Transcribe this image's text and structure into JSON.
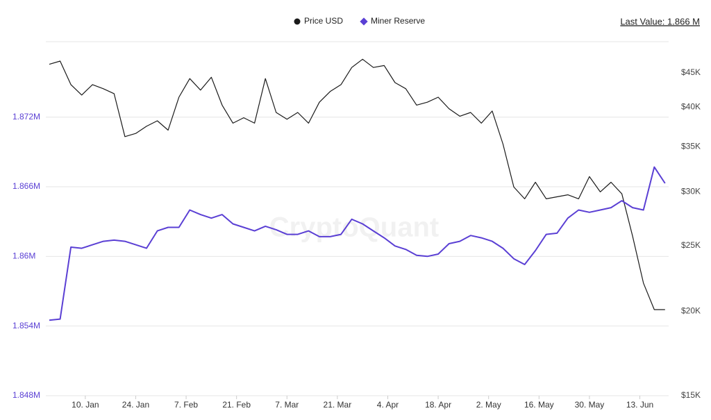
{
  "chart_data": {
    "type": "line",
    "last_value": "Last Value: 1.866 M",
    "watermark": "CryptoQuant",
    "x": [
      0,
      3,
      6,
      9,
      12,
      15,
      18,
      21,
      24,
      27,
      30,
      33,
      36,
      39,
      42,
      45,
      48,
      51,
      54,
      57,
      60,
      63,
      66,
      69,
      72,
      75,
      78,
      81,
      84,
      87,
      90,
      93,
      96,
      99,
      102,
      105,
      108,
      111,
      114,
      117,
      120,
      123,
      126,
      129,
      132,
      135,
      138,
      141,
      144,
      147,
      150,
      153,
      156,
      159,
      162,
      165,
      168,
      171
    ],
    "xlim": [
      0,
      172
    ],
    "xticks": [
      {
        "value": 10,
        "label": "10. Jan"
      },
      {
        "value": 24,
        "label": "24. Jan"
      },
      {
        "value": 38,
        "label": "7. Feb"
      },
      {
        "value": 52,
        "label": "21. Feb"
      },
      {
        "value": 66,
        "label": "7. Mar"
      },
      {
        "value": 80,
        "label": "21. Mar"
      },
      {
        "value": 94,
        "label": "4. Apr"
      },
      {
        "value": 108,
        "label": "18. Apr"
      },
      {
        "value": 122,
        "label": "2. May"
      },
      {
        "value": 136,
        "label": "16. May"
      },
      {
        "value": 150,
        "label": "30. May"
      },
      {
        "value": 164,
        "label": "13. Jun"
      }
    ],
    "ylim": [
      1.848,
      1.8785
    ],
    "yticks": [
      {
        "value": 1.848,
        "label": "1.848M"
      },
      {
        "value": 1.854,
        "label": "1.854M"
      },
      {
        "value": 1.86,
        "label": "1.86M"
      },
      {
        "value": 1.866,
        "label": "1.866M"
      },
      {
        "value": 1.872,
        "label": "1.872M"
      }
    ],
    "y2lim": [
      15000,
      50000
    ],
    "y2scale": "log",
    "y2ticks": [
      {
        "value": 15000,
        "label": "$15K"
      },
      {
        "value": 20000,
        "label": "$20K"
      },
      {
        "value": 25000,
        "label": "$25K"
      },
      {
        "value": 30000,
        "label": "$30K"
      },
      {
        "value": 35000,
        "label": "$35K"
      },
      {
        "value": 40000,
        "label": "$40K"
      },
      {
        "value": 45000,
        "label": "$45K"
      }
    ],
    "grid": true,
    "legend": "top",
    "series": [
      {
        "name": "Price USD",
        "color": "#1a1a1a",
        "marker": "circle",
        "axis": "y2",
        "values": [
          46300,
          46800,
          43200,
          41700,
          43200,
          42600,
          41900,
          36200,
          36600,
          37500,
          38200,
          37000,
          41400,
          44100,
          42400,
          44300,
          40300,
          37900,
          38600,
          37900,
          44100,
          39300,
          38400,
          39300,
          37900,
          40700,
          42200,
          43200,
          45800,
          47100,
          45800,
          46100,
          43500,
          42600,
          40300,
          40700,
          41400,
          39800,
          38800,
          39300,
          37900,
          39500,
          35300,
          30500,
          29300,
          31000,
          29300,
          29500,
          29700,
          29300,
          31600,
          30000,
          31000,
          29800,
          25800,
          22000,
          20100,
          20100
        ]
      },
      {
        "name": "Miner Reserve",
        "color": "#5a3fd4",
        "marker": "diamond",
        "values": [
          1.8545,
          1.8546,
          1.8608,
          1.8607,
          1.861,
          1.8613,
          1.8614,
          1.8613,
          1.861,
          1.8607,
          1.8622,
          1.8625,
          1.8625,
          1.864,
          1.8636,
          1.8633,
          1.8636,
          1.8628,
          1.8625,
          1.8622,
          1.8626,
          1.8623,
          1.8619,
          1.8619,
          1.8622,
          1.8617,
          1.8617,
          1.8619,
          1.8632,
          1.8628,
          1.8622,
          1.8616,
          1.8609,
          1.8606,
          1.8601,
          1.86,
          1.8602,
          1.8611,
          1.8613,
          1.8618,
          1.8616,
          1.8613,
          1.8607,
          1.8598,
          1.8593,
          1.8605,
          1.8619,
          1.862,
          1.8633,
          1.864,
          1.8638,
          1.864,
          1.8642,
          1.8648,
          1.8642,
          1.864,
          1.8677,
          1.8663
        ]
      }
    ]
  }
}
